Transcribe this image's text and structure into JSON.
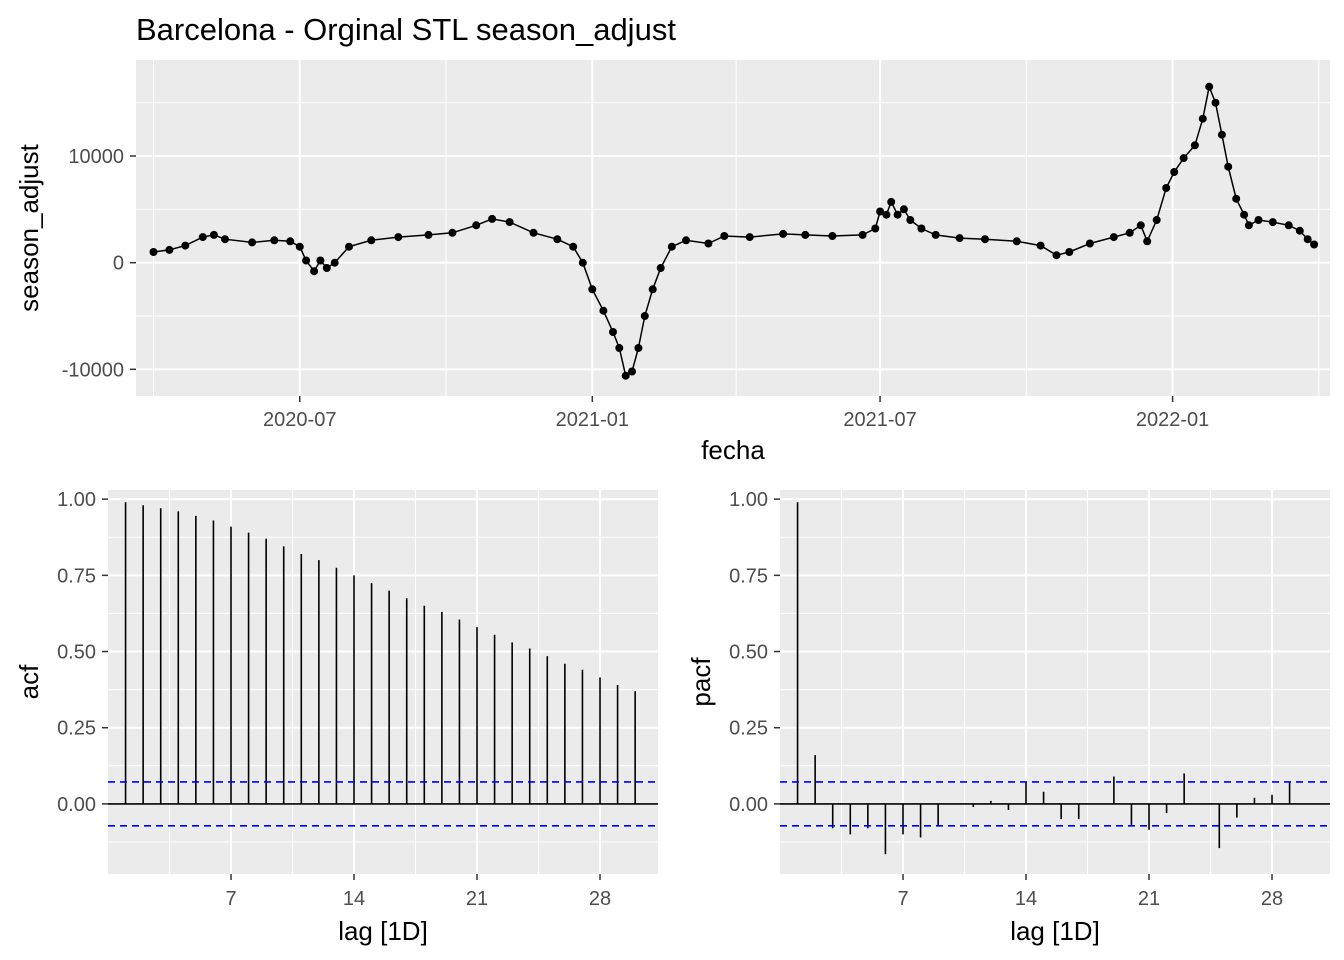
{
  "chart_data": [
    {
      "type": "line",
      "title": "Barcelona - Orginal STL season_adjust",
      "xlabel": "fecha",
      "ylabel": "season_adjust",
      "xlim": [
        "2020-03-20",
        "2022-04-10"
      ],
      "ylim": [
        -12500,
        19000
      ],
      "x_ticks": [
        {
          "date": "2020-07-01",
          "label": "2020-07"
        },
        {
          "date": "2021-01-01",
          "label": "2021-01"
        },
        {
          "date": "2021-07-01",
          "label": "2021-07"
        },
        {
          "date": "2022-01-01",
          "label": "2022-01"
        }
      ],
      "y_ticks": [
        {
          "value": -10000,
          "label": "-10000"
        },
        {
          "value": 0,
          "label": "0"
        },
        {
          "value": 10000,
          "label": "10000"
        }
      ],
      "grid": true,
      "markers": true,
      "points": [
        [
          "2020-03-31",
          1000
        ],
        [
          "2020-04-10",
          1200
        ],
        [
          "2020-04-20",
          1600
        ],
        [
          "2020-05-01",
          2400
        ],
        [
          "2020-05-08",
          2600
        ],
        [
          "2020-05-15",
          2200
        ],
        [
          "2020-06-01",
          1900
        ],
        [
          "2020-06-15",
          2100
        ],
        [
          "2020-06-25",
          2000
        ],
        [
          "2020-07-01",
          1500
        ],
        [
          "2020-07-05",
          200
        ],
        [
          "2020-07-10",
          -800
        ],
        [
          "2020-07-14",
          200
        ],
        [
          "2020-07-18",
          -500
        ],
        [
          "2020-07-23",
          0
        ],
        [
          "2020-08-01",
          1500
        ],
        [
          "2020-08-15",
          2100
        ],
        [
          "2020-09-01",
          2400
        ],
        [
          "2020-09-20",
          2600
        ],
        [
          "2020-10-05",
          2800
        ],
        [
          "2020-10-20",
          3500
        ],
        [
          "2020-10-30",
          4100
        ],
        [
          "2020-11-10",
          3800
        ],
        [
          "2020-11-25",
          2800
        ],
        [
          "2020-12-10",
          2200
        ],
        [
          "2020-12-20",
          1500
        ],
        [
          "2020-12-26",
          0
        ],
        [
          "2021-01-01",
          -2500
        ],
        [
          "2021-01-08",
          -4500
        ],
        [
          "2021-01-14",
          -6500
        ],
        [
          "2021-01-18",
          -8000
        ],
        [
          "2021-01-22",
          -10600
        ],
        [
          "2021-01-26",
          -10200
        ],
        [
          "2021-01-30",
          -8000
        ],
        [
          "2021-02-03",
          -5000
        ],
        [
          "2021-02-08",
          -2500
        ],
        [
          "2021-02-13",
          -500
        ],
        [
          "2021-02-20",
          1500
        ],
        [
          "2021-03-01",
          2100
        ],
        [
          "2021-03-15",
          1800
        ],
        [
          "2021-03-25",
          2500
        ],
        [
          "2021-04-10",
          2400
        ],
        [
          "2021-05-01",
          2700
        ],
        [
          "2021-05-15",
          2600
        ],
        [
          "2021-06-01",
          2500
        ],
        [
          "2021-06-20",
          2600
        ],
        [
          "2021-06-28",
          3200
        ],
        [
          "2021-07-01",
          4800
        ],
        [
          "2021-07-05",
          4500
        ],
        [
          "2021-07-08",
          5700
        ],
        [
          "2021-07-12",
          4500
        ],
        [
          "2021-07-16",
          5000
        ],
        [
          "2021-07-20",
          4000
        ],
        [
          "2021-07-27",
          3200
        ],
        [
          "2021-08-05",
          2600
        ],
        [
          "2021-08-20",
          2300
        ],
        [
          "2021-09-05",
          2200
        ],
        [
          "2021-09-25",
          2000
        ],
        [
          "2021-10-10",
          1600
        ],
        [
          "2021-10-20",
          700
        ],
        [
          "2021-10-28",
          1000
        ],
        [
          "2021-11-10",
          1800
        ],
        [
          "2021-11-25",
          2400
        ],
        [
          "2021-12-05",
          2800
        ],
        [
          "2021-12-12",
          3500
        ],
        [
          "2021-12-16",
          2000
        ],
        [
          "2021-12-22",
          4000
        ],
        [
          "2021-12-28",
          7000
        ],
        [
          "2022-01-02",
          8500
        ],
        [
          "2022-01-08",
          9800
        ],
        [
          "2022-01-15",
          11000
        ],
        [
          "2022-01-20",
          13500
        ],
        [
          "2022-01-24",
          16500
        ],
        [
          "2022-01-28",
          15000
        ],
        [
          "2022-02-01",
          12000
        ],
        [
          "2022-02-05",
          9000
        ],
        [
          "2022-02-10",
          6000
        ],
        [
          "2022-02-15",
          4500
        ],
        [
          "2022-02-18",
          3500
        ],
        [
          "2022-02-24",
          4000
        ],
        [
          "2022-03-05",
          3800
        ],
        [
          "2022-03-15",
          3500
        ],
        [
          "2022-03-22",
          3000
        ],
        [
          "2022-03-27",
          2200
        ],
        [
          "2022-03-31",
          1700
        ]
      ]
    },
    {
      "type": "bar",
      "xlabel": "lag [1D]",
      "ylabel": "acf",
      "xlim": [
        0,
        31.3
      ],
      "ylim": [
        -0.23,
        1.03
      ],
      "x_ticks": [
        7,
        14,
        21,
        28
      ],
      "y_ticks": [
        {
          "value": 0,
          "label": "0.00"
        },
        {
          "value": 0.25,
          "label": "0.25"
        },
        {
          "value": 0.5,
          "label": "0.50"
        },
        {
          "value": 0.75,
          "label": "0.75"
        },
        {
          "value": 1,
          "label": "1.00"
        }
      ],
      "ci": 0.072,
      "lags": [
        1,
        2,
        3,
        4,
        5,
        6,
        7,
        8,
        9,
        10,
        11,
        12,
        13,
        14,
        15,
        16,
        17,
        18,
        19,
        20,
        21,
        22,
        23,
        24,
        25,
        26,
        27,
        28,
        29,
        30
      ],
      "values": [
        0.99,
        0.98,
        0.97,
        0.96,
        0.945,
        0.93,
        0.91,
        0.89,
        0.87,
        0.845,
        0.82,
        0.8,
        0.775,
        0.75,
        0.725,
        0.7,
        0.675,
        0.65,
        0.63,
        0.605,
        0.58,
        0.555,
        0.53,
        0.51,
        0.485,
        0.46,
        0.44,
        0.415,
        0.39,
        0.37
      ]
    },
    {
      "type": "bar",
      "xlabel": "lag [1D]",
      "ylabel": "pacf",
      "xlim": [
        0,
        31.3
      ],
      "ylim": [
        -0.23,
        1.03
      ],
      "x_ticks": [
        7,
        14,
        21,
        28
      ],
      "y_ticks": [
        {
          "value": 0,
          "label": "0.00"
        },
        {
          "value": 0.25,
          "label": "0.25"
        },
        {
          "value": 0.5,
          "label": "0.50"
        },
        {
          "value": 0.75,
          "label": "0.75"
        },
        {
          "value": 1,
          "label": "1.00"
        }
      ],
      "ci": 0.072,
      "lags": [
        1,
        2,
        3,
        4,
        5,
        6,
        7,
        8,
        9,
        10,
        11,
        12,
        13,
        14,
        15,
        16,
        17,
        18,
        19,
        20,
        21,
        22,
        23,
        24,
        25,
        26,
        27,
        28,
        29
      ],
      "values": [
        0.99,
        0.16,
        -0.08,
        -0.1,
        -0.08,
        -0.165,
        -0.1,
        -0.11,
        -0.07,
        0.0,
        -0.01,
        0.01,
        -0.02,
        0.07,
        0.04,
        -0.05,
        -0.05,
        0.0,
        0.09,
        -0.07,
        -0.085,
        -0.03,
        0.1,
        0.0,
        -0.145,
        -0.045,
        0.02,
        0.03,
        0.07
      ]
    }
  ]
}
